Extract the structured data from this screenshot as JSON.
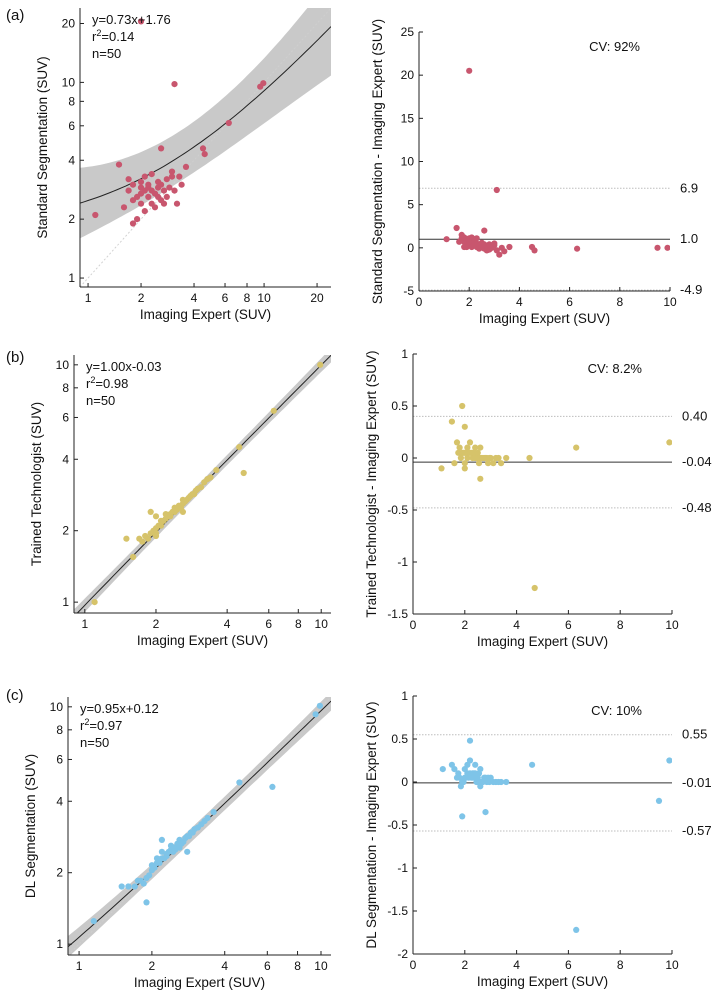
{
  "chart_data": [
    {
      "type": "scatter",
      "panel": "(a)",
      "role": "correlation",
      "scale": "log",
      "xlabel": "Imaging Expert (SUV)",
      "ylabel": "Standard Segmentation (SUV)",
      "xlim": [
        0.9,
        24
      ],
      "ylim": [
        0.9,
        24
      ],
      "xticks": [
        "1",
        "2",
        "4",
        "6",
        "8",
        "10",
        "20"
      ],
      "yticks": [
        "1",
        "2",
        "4",
        "6",
        "8",
        "10",
        "20"
      ],
      "annotations": [
        "y=0.73x+1.76",
        "r^2=0.14",
        "n=50"
      ],
      "fit": {
        "slope": 0.73,
        "intercept": 1.76,
        "ci_half_width_log10": [
          0.18,
          0.05,
          0.25
        ]
      },
      "color": "#c8566e",
      "x": [
        1.1,
        1.5,
        1.6,
        1.7,
        1.7,
        1.8,
        1.8,
        1.9,
        1.9,
        2.0,
        2.0,
        2.0,
        2.0,
        2.1,
        2.1,
        2.1,
        2.2,
        2.2,
        2.2,
        2.3,
        2.3,
        2.3,
        2.4,
        2.4,
        2.5,
        2.5,
        2.5,
        2.6,
        2.6,
        2.7,
        2.7,
        2.8,
        2.8,
        2.9,
        3.0,
        3.0,
        3.1,
        3.2,
        3.3,
        3.4,
        3.6,
        2.0,
        2.6,
        1.8,
        4.5,
        4.6,
        6.3,
        9.5,
        9.9,
        3.1
      ],
      "y": [
        2.1,
        3.8,
        2.3,
        2.8,
        3.2,
        2.5,
        3.0,
        2.6,
        2.0,
        2.7,
        3.1,
        2.9,
        2.4,
        2.8,
        3.3,
        2.2,
        2.6,
        3.0,
        2.9,
        2.4,
        2.8,
        3.4,
        2.7,
        2.3,
        3.1,
        2.6,
        2.9,
        2.5,
        3.0,
        2.4,
        2.8,
        2.6,
        3.2,
        2.9,
        3.5,
        3.3,
        2.8,
        2.4,
        3.3,
        3.0,
        3.7,
        20.5,
        4.6,
        1.9,
        4.6,
        4.3,
        6.2,
        9.5,
        9.9,
        9.8
      ]
    },
    {
      "type": "scatter",
      "panel": "(a)",
      "role": "bland-altman",
      "xlabel": "Imaging Expert (SUV)",
      "ylabel": "Standard Segmentation - Imaging Expert (SUV)",
      "xlim": [
        0,
        10
      ],
      "ylim": [
        -5,
        25
      ],
      "xticks": [
        "0",
        "2",
        "4",
        "6",
        "8",
        "10"
      ],
      "yticks": [
        "25",
        "20",
        "15",
        "10",
        "5",
        "0",
        "-5"
      ],
      "cv_label": "CV: 92%",
      "mean": 1.0,
      "loa_upper": 6.9,
      "loa_lower": -4.9,
      "mean_label": "1.0",
      "loa_upper_label": "6.9",
      "loa_lower_label": "-4.9",
      "color": "#c8566e",
      "x": [
        1.1,
        1.5,
        1.6,
        1.7,
        1.7,
        1.8,
        1.8,
        1.9,
        1.9,
        2.0,
        2.0,
        2.0,
        2.0,
        2.1,
        2.1,
        2.1,
        2.2,
        2.2,
        2.2,
        2.3,
        2.3,
        2.3,
        2.4,
        2.4,
        2.5,
        2.5,
        2.5,
        2.6,
        2.6,
        2.7,
        2.7,
        2.8,
        2.8,
        2.9,
        3.0,
        3.0,
        3.1,
        3.2,
        3.3,
        3.4,
        3.6,
        2.0,
        2.6,
        1.8,
        4.5,
        4.6,
        6.3,
        9.5,
        9.9,
        3.1
      ],
      "y": [
        1.0,
        2.3,
        0.7,
        1.1,
        1.5,
        0.7,
        1.2,
        0.7,
        0.1,
        0.7,
        1.1,
        0.9,
        0.4,
        0.7,
        1.2,
        0.1,
        0.4,
        0.8,
        0.7,
        0.1,
        0.5,
        1.1,
        0.3,
        -0.1,
        0.6,
        0.1,
        0.4,
        -0.1,
        0.4,
        -0.3,
        0.1,
        -0.2,
        0.4,
        0.0,
        0.5,
        0.3,
        -0.3,
        -0.8,
        0.0,
        -0.4,
        0.1,
        20.5,
        2.0,
        0.1,
        0.1,
        -0.3,
        -0.1,
        0.0,
        0.0,
        6.7
      ]
    },
    {
      "type": "scatter",
      "panel": "(b)",
      "role": "correlation",
      "scale": "log",
      "xlabel": "Imaging Expert (SUV)",
      "ylabel": "Trained Technologist (SUV)",
      "xlim": [
        0.9,
        11
      ],
      "ylim": [
        0.9,
        11
      ],
      "xticks": [
        "1",
        "2",
        "4",
        "6",
        "8",
        "10"
      ],
      "yticks": [
        "1",
        "2",
        "4",
        "6",
        "8",
        "10"
      ],
      "annotations": [
        "y=1.00x-0.03",
        "r^2=0.98",
        "n=50"
      ],
      "fit": {
        "slope": 1.0,
        "intercept": -0.03,
        "ci_half_width_log10": [
          0.03,
          0.012,
          0.03
        ]
      },
      "color": "#d6c36a",
      "x": [
        1.1,
        1.5,
        1.6,
        1.7,
        1.75,
        1.8,
        1.85,
        1.9,
        1.9,
        1.95,
        2.0,
        2.0,
        2.0,
        2.05,
        2.1,
        2.1,
        2.15,
        2.2,
        2.2,
        2.25,
        2.3,
        2.3,
        2.35,
        2.4,
        2.4,
        2.45,
        2.5,
        2.5,
        2.55,
        2.6,
        2.6,
        2.65,
        2.7,
        2.75,
        2.8,
        2.85,
        2.9,
        2.95,
        3.0,
        3.1,
        3.2,
        3.3,
        3.4,
        3.6,
        2.0,
        2.6,
        4.5,
        4.7,
        6.3,
        9.9
      ],
      "y": [
        1.0,
        1.85,
        1.55,
        1.85,
        1.8,
        1.9,
        1.85,
        1.95,
        2.4,
        2.0,
        2.05,
        1.9,
        1.95,
        2.1,
        2.2,
        2.1,
        2.2,
        2.25,
        2.35,
        2.3,
        2.3,
        2.35,
        2.4,
        2.4,
        2.5,
        2.45,
        2.5,
        2.55,
        2.5,
        2.6,
        2.7,
        2.65,
        2.7,
        2.75,
        2.8,
        2.85,
        2.85,
        2.95,
        3.0,
        3.05,
        3.2,
        3.3,
        3.35,
        3.6,
        2.3,
        2.4,
        4.5,
        3.5,
        6.4,
        10.0
      ]
    },
    {
      "type": "scatter",
      "panel": "(b)",
      "role": "bland-altman",
      "xlabel": "Imaging Expert (SUV)",
      "ylabel": "Trained Technologist - Imaging Expert (SUV)",
      "xlim": [
        0,
        10
      ],
      "ylim": [
        -1.5,
        1.0
      ],
      "xticks": [
        "0",
        "2",
        "4",
        "6",
        "8",
        "10"
      ],
      "yticks": [
        "1",
        "0.5",
        "0",
        "-0.5",
        "-1",
        "-1.5"
      ],
      "cv_label": "CV: 8.2%",
      "mean": -0.04,
      "loa_upper": 0.4,
      "loa_lower": -0.48,
      "mean_label": "-0.04",
      "loa_upper_label": "0.40",
      "loa_lower_label": "-0.48",
      "color": "#d6c36a",
      "x": [
        1.1,
        1.5,
        1.6,
        1.7,
        1.75,
        1.8,
        1.85,
        1.9,
        1.9,
        1.95,
        2.0,
        2.0,
        2.0,
        2.05,
        2.1,
        2.1,
        2.15,
        2.2,
        2.2,
        2.25,
        2.3,
        2.3,
        2.35,
        2.4,
        2.4,
        2.45,
        2.5,
        2.5,
        2.55,
        2.6,
        2.6,
        2.65,
        2.7,
        2.75,
        2.8,
        2.85,
        2.9,
        2.95,
        3.0,
        3.1,
        3.2,
        3.3,
        3.4,
        3.6,
        2.0,
        2.6,
        4.5,
        4.7,
        6.3,
        9.9
      ],
      "y": [
        -0.1,
        0.35,
        -0.05,
        0.15,
        0.05,
        0.1,
        0.0,
        0.05,
        0.5,
        0.05,
        0.05,
        -0.1,
        -0.05,
        0.05,
        0.1,
        0.0,
        0.05,
        0.05,
        0.15,
        0.05,
        0.0,
        0.05,
        0.05,
        0.0,
        0.1,
        0.0,
        0.0,
        0.05,
        -0.05,
        0.0,
        0.1,
        0.0,
        0.0,
        0.0,
        0.0,
        0.0,
        -0.05,
        0.0,
        0.0,
        -0.05,
        0.0,
        0.0,
        -0.05,
        0.0,
        0.3,
        -0.2,
        0.0,
        -1.25,
        0.1,
        0.15
      ]
    },
    {
      "type": "scatter",
      "panel": "(c)",
      "role": "correlation",
      "scale": "log",
      "xlabel": "Imaging Expert (SUV)",
      "ylabel": "DL Segmentation (SUV)",
      "xlim": [
        0.9,
        11
      ],
      "ylim": [
        0.9,
        11
      ],
      "xticks": [
        "1",
        "2",
        "4",
        "6",
        "8",
        "10"
      ],
      "yticks": [
        "1",
        "2",
        "4",
        "6",
        "8",
        "10"
      ],
      "annotations": [
        "y=0.95x+0.12",
        "r^2=0.97",
        "n=50"
      ],
      "fit": {
        "slope": 0.95,
        "intercept": 0.12,
        "ci_half_width_log10": [
          0.045,
          0.015,
          0.04
        ]
      },
      "color": "#7ec4e8",
      "x": [
        1.15,
        1.5,
        1.6,
        1.7,
        1.75,
        1.8,
        1.85,
        1.9,
        1.95,
        2.0,
        2.0,
        2.05,
        2.1,
        2.1,
        2.15,
        2.2,
        2.2,
        2.25,
        2.3,
        2.3,
        2.35,
        2.4,
        2.4,
        2.45,
        2.5,
        2.5,
        2.55,
        2.6,
        2.6,
        2.65,
        2.7,
        2.75,
        2.8,
        2.85,
        2.9,
        2.95,
        3.0,
        3.1,
        3.2,
        3.3,
        3.4,
        3.6,
        1.9,
        2.2,
        2.6,
        2.8,
        4.6,
        6.3,
        9.5,
        9.9
      ],
      "y": [
        1.25,
        1.75,
        1.75,
        1.75,
        1.85,
        1.85,
        1.8,
        1.9,
        1.95,
        2.05,
        2.15,
        2.1,
        2.2,
        2.3,
        2.2,
        2.3,
        2.45,
        2.3,
        2.4,
        2.35,
        2.45,
        2.5,
        2.6,
        2.45,
        2.55,
        2.5,
        2.65,
        2.6,
        2.75,
        2.65,
        2.7,
        2.8,
        2.85,
        2.85,
        2.95,
        2.95,
        3.05,
        3.1,
        3.2,
        3.3,
        3.4,
        3.6,
        1.5,
        2.75,
        2.55,
        2.45,
        4.8,
        4.6,
        9.3,
        10.1
      ]
    },
    {
      "type": "scatter",
      "panel": "(c)",
      "role": "bland-altman",
      "xlabel": "Imaging Expert (SUV)",
      "ylabel": "DL Segmentation - Imaging Expert (SUV)",
      "xlim": [
        0,
        10
      ],
      "ylim": [
        -2,
        1
      ],
      "xticks": [
        "0",
        "2",
        "4",
        "6",
        "8",
        "10"
      ],
      "yticks": [
        "1",
        "0.5",
        "0",
        "-0.5",
        "-1",
        "-1.5",
        "-2"
      ],
      "cv_label": "CV: 10%",
      "mean": -0.01,
      "loa_upper": 0.55,
      "loa_lower": -0.57,
      "mean_label": "-0.01",
      "loa_upper_label": "0.55",
      "loa_lower_label": "-0.57",
      "color": "#7ec4e8",
      "x": [
        1.15,
        1.5,
        1.6,
        1.7,
        1.75,
        1.8,
        1.85,
        1.9,
        1.95,
        2.0,
        2.0,
        2.05,
        2.1,
        2.1,
        2.15,
        2.2,
        2.2,
        2.25,
        2.3,
        2.3,
        2.35,
        2.4,
        2.4,
        2.45,
        2.5,
        2.5,
        2.55,
        2.6,
        2.6,
        2.65,
        2.7,
        2.75,
        2.8,
        2.85,
        2.9,
        2.95,
        3.0,
        3.1,
        3.2,
        3.3,
        3.4,
        3.6,
        1.9,
        2.2,
        2.6,
        2.8,
        4.6,
        6.3,
        9.5,
        9.9
      ],
      "y": [
        0.15,
        0.2,
        0.15,
        0.05,
        0.1,
        0.05,
        -0.05,
        0.0,
        0.0,
        0.05,
        0.15,
        0.05,
        0.1,
        0.2,
        0.05,
        0.1,
        0.25,
        0.05,
        0.1,
        0.05,
        0.1,
        0.1,
        0.2,
        0.0,
        0.05,
        0.0,
        0.1,
        0.0,
        0.15,
        0.0,
        0.0,
        0.05,
        0.05,
        0.0,
        0.05,
        0.0,
        0.05,
        0.0,
        0.0,
        0.0,
        0.0,
        0.0,
        -0.4,
        0.48,
        -0.05,
        -0.35,
        0.2,
        -1.72,
        -0.22,
        0.25
      ]
    }
  ],
  "panel_labels": [
    "(a)",
    "(b)",
    "(c)"
  ]
}
